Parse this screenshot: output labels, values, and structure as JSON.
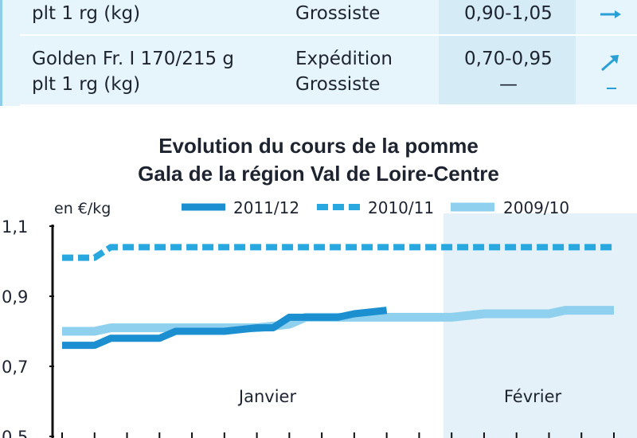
{
  "table": {
    "rows": [
      {
        "product": [
          "",
          "plt 1 rg (kg)"
        ],
        "market": [
          "",
          "Grossiste"
        ],
        "price": [
          "0,90-1,05"
        ],
        "trend_icon": [
          "arrow-right-icon"
        ]
      },
      {
        "product": [
          "Golden Fr. I 170/215 g",
          "plt 1 rg (kg)"
        ],
        "market": [
          "Expédition",
          "Grossiste"
        ],
        "price": [
          "0,70-0,95",
          "—"
        ],
        "trend_icon": [
          "arrow-up-right-icon",
          "dash-icon"
        ]
      }
    ]
  },
  "chart_data": {
    "type": "line",
    "title": [
      "Evolution du cours de la pomme",
      "Gala de la région Val de Loire-Centre"
    ],
    "ylabel": "en €/kg",
    "ylim": [
      0.5,
      1.1
    ],
    "yticks": [
      "1,1",
      "0,9",
      "0,7",
      "0,5"
    ],
    "ytick_values": [
      1.1,
      0.9,
      0.7,
      0.5
    ],
    "period_labels": [
      "Janvier",
      "Février"
    ],
    "week_index_range": [
      0,
      17
    ],
    "legend_position": "top",
    "series": [
      {
        "name": "2011/12",
        "style": "solid-thick",
        "color": "#1c8fd1",
        "x": [
          0,
          1,
          1.5,
          2,
          3,
          3.5,
          4,
          5,
          6,
          6.5,
          7,
          8,
          8.5,
          9,
          10
        ],
        "y": [
          0.76,
          0.76,
          0.78,
          0.78,
          0.78,
          0.8,
          0.8,
          0.8,
          0.81,
          0.81,
          0.84,
          0.84,
          0.84,
          0.85,
          0.86
        ]
      },
      {
        "name": "2010/11",
        "style": "dashed",
        "color": "#29a8df",
        "x": [
          0,
          1,
          1.5,
          2,
          3,
          4,
          5,
          6,
          7,
          8,
          9,
          10,
          11,
          12,
          13,
          14,
          15,
          16,
          17
        ],
        "y": [
          1.01,
          1.01,
          1.04,
          1.04,
          1.04,
          1.04,
          1.04,
          1.04,
          1.04,
          1.04,
          1.04,
          1.04,
          1.04,
          1.04,
          1.04,
          1.04,
          1.04,
          1.04,
          1.04
        ]
      },
      {
        "name": "2009/10",
        "style": "solid-light",
        "color": "#8fd0ee",
        "x": [
          0,
          1,
          1.5,
          2,
          3,
          4,
          5,
          6,
          7,
          7.5,
          8,
          9,
          10,
          11,
          12,
          13,
          14,
          15,
          15.5,
          16,
          17
        ],
        "y": [
          0.8,
          0.8,
          0.81,
          0.81,
          0.81,
          0.81,
          0.81,
          0.81,
          0.82,
          0.84,
          0.84,
          0.84,
          0.84,
          0.84,
          0.84,
          0.85,
          0.85,
          0.85,
          0.86,
          0.86,
          0.86
        ]
      }
    ],
    "grid": false
  }
}
